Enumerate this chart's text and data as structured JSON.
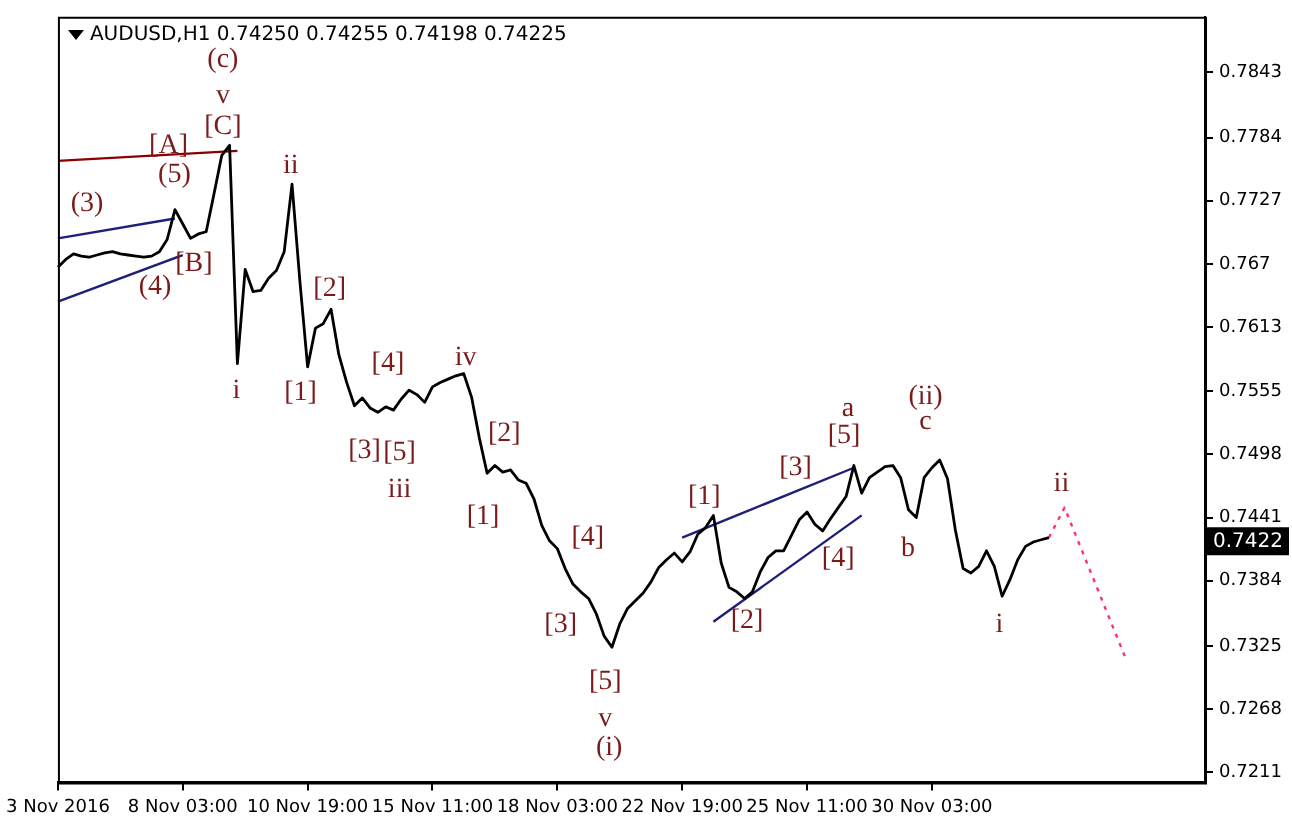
{
  "chart_data": {
    "type": "line",
    "title": "AUDUSD,H1 0.74250 0.74255 0.74198 0.74225",
    "categories": [
      "3 Nov 2016",
      null,
      null,
      null,
      null,
      null,
      null,
      null,
      null,
      null,
      null,
      null,
      null,
      null,
      null,
      null,
      "8 Nov 03:00",
      null,
      null,
      null,
      null,
      null,
      null,
      null,
      null,
      null,
      null,
      null,
      null,
      null,
      null,
      null,
      "10 Nov 19:00",
      null,
      null,
      null,
      null,
      null,
      null,
      null,
      null,
      null,
      null,
      null,
      null,
      null,
      null,
      null,
      "15 Nov 11:00",
      null,
      null,
      null,
      null,
      null,
      null,
      null,
      null,
      null,
      null,
      null,
      null,
      null,
      null,
      null,
      "18 Nov 03:00",
      null,
      null,
      null,
      null,
      null,
      null,
      null,
      null,
      null,
      null,
      null,
      null,
      null,
      null,
      null,
      "22 Nov 19:00",
      null,
      null,
      null,
      null,
      null,
      null,
      null,
      null,
      null,
      null,
      null,
      null,
      null,
      null,
      null,
      "25 Nov 11:00",
      null,
      null,
      null,
      null,
      null,
      null,
      null,
      null,
      null,
      null,
      null,
      null,
      null,
      null,
      null,
      "30 Nov 03:00",
      null,
      null,
      null,
      null,
      null,
      null,
      null,
      null,
      null,
      null,
      null,
      null,
      null,
      null,
      null,
      null,
      null,
      null,
      null,
      null,
      null,
      null,
      null,
      null,
      null,
      null,
      null,
      null,
      null,
      null,
      null,
      null,
      null,
      null,
      null
    ],
    "ylim": [
      0.7202,
      0.7893
    ],
    "yticks": [
      0.7211,
      0.7268,
      0.7325,
      0.7384,
      0.7441,
      0.7498,
      0.7555,
      0.7613,
      0.767,
      0.7727,
      0.7784,
      0.7843
    ],
    "grid": false,
    "legend": false,
    "marker": "none",
    "series": [
      {
        "color": "#000000",
        "line_style": "solid",
        "values": [
          0.7667,
          0.7674,
          0.7679,
          0.7677,
          0.7676,
          0.7678,
          0.768,
          0.7681,
          0.7679,
          0.7678,
          0.7677,
          0.7676,
          0.7677,
          0.7681,
          0.7692,
          0.7719,
          0.7706,
          0.7693,
          0.7697,
          0.7699,
          0.7733,
          0.7768,
          0.7777,
          0.758,
          0.7665,
          0.7645,
          0.7646,
          0.7657,
          0.7664,
          0.7681,
          0.7742,
          0.7655,
          0.7577,
          0.7612,
          0.7616,
          0.7629,
          0.7588,
          0.7563,
          0.7542,
          0.7549,
          0.754,
          0.7536,
          0.7541,
          0.7538,
          0.7548,
          0.7556,
          0.7552,
          0.7545,
          0.7559,
          0.7563,
          0.7566,
          0.7569,
          0.7571,
          0.755,
          0.7513,
          0.7481,
          0.7488,
          0.7482,
          0.7484,
          0.7475,
          0.7472,
          0.7458,
          0.7434,
          0.742,
          0.7413,
          0.7395,
          0.7381,
          0.7374,
          0.7368,
          0.7354,
          0.7334,
          0.7324,
          0.7345,
          0.7359,
          0.7366,
          0.7373,
          0.7383,
          0.7396,
          0.7403,
          0.7409,
          0.7401,
          0.741,
          0.7426,
          0.7432,
          0.7443,
          0.74,
          0.7378,
          0.7374,
          0.7368,
          0.7374,
          0.7392,
          0.7405,
          0.7411,
          0.7411,
          0.7425,
          0.7439,
          0.7446,
          0.7435,
          0.7429,
          0.744,
          0.745,
          0.746,
          0.7488,
          0.7463,
          0.7477,
          0.7482,
          0.7487,
          0.7488,
          0.7477,
          0.7448,
          0.7441,
          0.7477,
          0.7486,
          0.7493,
          0.7476,
          0.743,
          0.7395,
          0.7391,
          0.7397,
          0.7411,
          0.7397,
          0.737,
          0.7385,
          0.7403,
          0.7415,
          0.7419,
          0.7421,
          0.7423,
          null,
          null,
          null,
          null,
          null,
          null,
          null,
          null,
          null,
          null,
          null,
          null,
          null,
          null,
          null,
          null,
          null,
          null,
          null,
          null
        ]
      },
      {
        "color": "#ff3366",
        "line_style": "dotted",
        "values": [
          null,
          null,
          null,
          null,
          null,
          null,
          null,
          null,
          null,
          null,
          null,
          null,
          null,
          null,
          null,
          null,
          null,
          null,
          null,
          null,
          null,
          null,
          null,
          null,
          null,
          null,
          null,
          null,
          null,
          null,
          null,
          null,
          null,
          null,
          null,
          null,
          null,
          null,
          null,
          null,
          null,
          null,
          null,
          null,
          null,
          null,
          null,
          null,
          null,
          null,
          null,
          null,
          null,
          null,
          null,
          null,
          null,
          null,
          null,
          null,
          null,
          null,
          null,
          null,
          null,
          null,
          null,
          null,
          null,
          null,
          null,
          null,
          null,
          null,
          null,
          null,
          null,
          null,
          null,
          null,
          null,
          null,
          null,
          null,
          null,
          null,
          null,
          null,
          null,
          null,
          null,
          null,
          null,
          null,
          null,
          null,
          null,
          null,
          null,
          null,
          null,
          null,
          null,
          null,
          null,
          null,
          null,
          null,
          null,
          null,
          null,
          null,
          null,
          null,
          null,
          null,
          null,
          null,
          null,
          null,
          null,
          null,
          null,
          null,
          null,
          null,
          null,
          0.7423,
          null,
          0.745,
          null,
          null,
          null,
          null,
          null,
          null,
          null,
          0.7311,
          null,
          null,
          null,
          null,
          null,
          null,
          null,
          null,
          null,
          null
        ]
      },
      {
        "color": "#8b0000",
        "line_style": "solid",
        "values": [
          0.7763,
          null,
          null,
          null,
          null,
          null,
          null,
          null,
          null,
          null,
          null,
          null,
          null,
          null,
          null,
          null,
          null,
          null,
          null,
          null,
          null,
          null,
          null,
          0.7772,
          null,
          null,
          null,
          null,
          null,
          null,
          null,
          null,
          null,
          null,
          null,
          null,
          null,
          null,
          null,
          null,
          null,
          null,
          null,
          null,
          null,
          null,
          null,
          null,
          null,
          null,
          null,
          null,
          null,
          null,
          null,
          null,
          null,
          null,
          null,
          null,
          null,
          null,
          null,
          null,
          null,
          null,
          null,
          null,
          null,
          null,
          null,
          null,
          null,
          null,
          null,
          null,
          null,
          null,
          null,
          null,
          null,
          null,
          null,
          null,
          null,
          null,
          null,
          null,
          null,
          null,
          null,
          null,
          null,
          null,
          null,
          null,
          null,
          null,
          null,
          null,
          null,
          null,
          null,
          null,
          null,
          null,
          null,
          null,
          null,
          null,
          null,
          null,
          null,
          null,
          null,
          null,
          null,
          null,
          null,
          null,
          null,
          null,
          null,
          null,
          null,
          null,
          null,
          null,
          null,
          null,
          null,
          null,
          null,
          null,
          null,
          null,
          null,
          null,
          null,
          null,
          null,
          null,
          null,
          null,
          null,
          null,
          null,
          null
        ]
      },
      {
        "color": "#1f1f7a",
        "line_style": "solid",
        "values": [
          0.7693,
          null,
          null,
          null,
          null,
          null,
          null,
          null,
          null,
          null,
          null,
          null,
          null,
          null,
          null,
          0.7711,
          null,
          null,
          null,
          null,
          null,
          null,
          null,
          null,
          null,
          null,
          null,
          null,
          null,
          null,
          null,
          null,
          null,
          null,
          null,
          null,
          null,
          null,
          null,
          null,
          null,
          null,
          null,
          null,
          null,
          null,
          null,
          null,
          null,
          null,
          null,
          null,
          null,
          null,
          null,
          null,
          null,
          null,
          null,
          null,
          null,
          null,
          null,
          null,
          null,
          null,
          null,
          null,
          null,
          null,
          null,
          null,
          null,
          null,
          null,
          null,
          null,
          null,
          null,
          null,
          null,
          null,
          null,
          null,
          null,
          null,
          null,
          null,
          null,
          null,
          null,
          null,
          null,
          null,
          null,
          null,
          null,
          null,
          null,
          null,
          null,
          null,
          null,
          null,
          null,
          null,
          null,
          null,
          null,
          null,
          null,
          null,
          null,
          null,
          null,
          null,
          null,
          null,
          null,
          null,
          null,
          null,
          null,
          null,
          null,
          null,
          null,
          null,
          null,
          null,
          null,
          null,
          null,
          null,
          null,
          null,
          null,
          null,
          null,
          null,
          null,
          null,
          null,
          null,
          null,
          null,
          null,
          null
        ]
      },
      {
        "color": "#1f1f7a",
        "line_style": "solid",
        "values": [
          0.7636,
          null,
          null,
          null,
          null,
          null,
          null,
          null,
          null,
          null,
          null,
          null,
          null,
          null,
          null,
          null,
          0.7678,
          null,
          null,
          null,
          null,
          null,
          null,
          null,
          null,
          null,
          null,
          null,
          null,
          null,
          null,
          null,
          null,
          null,
          null,
          null,
          null,
          null,
          null,
          null,
          null,
          null,
          null,
          null,
          null,
          null,
          null,
          null,
          null,
          null,
          null,
          null,
          null,
          null,
          null,
          null,
          null,
          null,
          null,
          null,
          null,
          null,
          null,
          null,
          null,
          null,
          null,
          null,
          null,
          null,
          null,
          null,
          null,
          null,
          null,
          null,
          null,
          null,
          null,
          null,
          null,
          null,
          null,
          null,
          null,
          null,
          null,
          null,
          null,
          null,
          null,
          null,
          null,
          null,
          null,
          null,
          null,
          null,
          null,
          null,
          null,
          null,
          null,
          null,
          null,
          null,
          null,
          null,
          null,
          null,
          null,
          null,
          null,
          null,
          null,
          null,
          null,
          null,
          null,
          null,
          null,
          null,
          null,
          null,
          null,
          null,
          null,
          null,
          null,
          null,
          null,
          null,
          null,
          null,
          null,
          null,
          null,
          null,
          null,
          null,
          null,
          null,
          null,
          null,
          null,
          null,
          null,
          null
        ]
      },
      {
        "color": "#1f1f7a",
        "line_style": "solid",
        "values": [
          null,
          null,
          null,
          null,
          null,
          null,
          null,
          null,
          null,
          null,
          null,
          null,
          null,
          null,
          null,
          null,
          null,
          null,
          null,
          null,
          null,
          null,
          null,
          null,
          null,
          null,
          null,
          null,
          null,
          null,
          null,
          null,
          null,
          null,
          null,
          null,
          null,
          null,
          null,
          null,
          null,
          null,
          null,
          null,
          null,
          null,
          null,
          null,
          null,
          null,
          null,
          null,
          null,
          null,
          null,
          null,
          null,
          null,
          null,
          null,
          null,
          null,
          null,
          null,
          null,
          null,
          null,
          null,
          null,
          null,
          null,
          null,
          null,
          null,
          null,
          null,
          null,
          null,
          null,
          null,
          0.7423,
          null,
          null,
          null,
          null,
          null,
          null,
          null,
          null,
          null,
          null,
          null,
          null,
          null,
          null,
          null,
          null,
          null,
          null,
          null,
          null,
          null,
          0.7486,
          null,
          null,
          null,
          null,
          null,
          null,
          null,
          null,
          null,
          null,
          null,
          null,
          null,
          null,
          null,
          null,
          null,
          null,
          null,
          null,
          null,
          null,
          null,
          null,
          null,
          null,
          null,
          null,
          null,
          null,
          null,
          null,
          null,
          null,
          null,
          null,
          null,
          null,
          null,
          null,
          null,
          null,
          null,
          null,
          null
        ]
      },
      {
        "color": "#1f1f7a",
        "line_style": "solid",
        "values": [
          null,
          null,
          null,
          null,
          null,
          null,
          null,
          null,
          null,
          null,
          null,
          null,
          null,
          null,
          null,
          null,
          null,
          null,
          null,
          null,
          null,
          null,
          null,
          null,
          null,
          null,
          null,
          null,
          null,
          null,
          null,
          null,
          null,
          null,
          null,
          null,
          null,
          null,
          null,
          null,
          null,
          null,
          null,
          null,
          null,
          null,
          null,
          null,
          null,
          null,
          null,
          null,
          null,
          null,
          null,
          null,
          null,
          null,
          null,
          null,
          null,
          null,
          null,
          null,
          null,
          null,
          null,
          null,
          null,
          null,
          null,
          null,
          null,
          null,
          null,
          null,
          null,
          null,
          null,
          null,
          null,
          null,
          null,
          null,
          0.7347,
          null,
          null,
          null,
          null,
          null,
          null,
          null,
          null,
          null,
          null,
          null,
          null,
          null,
          null,
          null,
          null,
          null,
          null,
          0.7443,
          null,
          null,
          null,
          null,
          null,
          null,
          null,
          null,
          null,
          null,
          null,
          null,
          null,
          null,
          null,
          null,
          null,
          null,
          null,
          null,
          null,
          null,
          null,
          null,
          null,
          null,
          null,
          null,
          null,
          null,
          null,
          null,
          null,
          null,
          null,
          null,
          null,
          null,
          null,
          null,
          null,
          null,
          null,
          null
        ]
      }
    ],
    "annotations": [
      "(3)",
      "(5)",
      "[A]",
      "(4)",
      "[B]",
      "[C]",
      "v",
      "(c)",
      "ii",
      "i",
      "[1]",
      "[2]",
      "[4]",
      "iv",
      "[3]",
      "[5]",
      "iii",
      "[2]",
      "[1]",
      "[4]",
      "[3]",
      "[5]",
      "v",
      "(i)",
      "[1]",
      "[2]",
      "[3]",
      "[5]",
      "a",
      "[4]",
      "(ii)",
      "c",
      "b",
      "i",
      "ii",
      "0.7422"
    ]
  }
}
